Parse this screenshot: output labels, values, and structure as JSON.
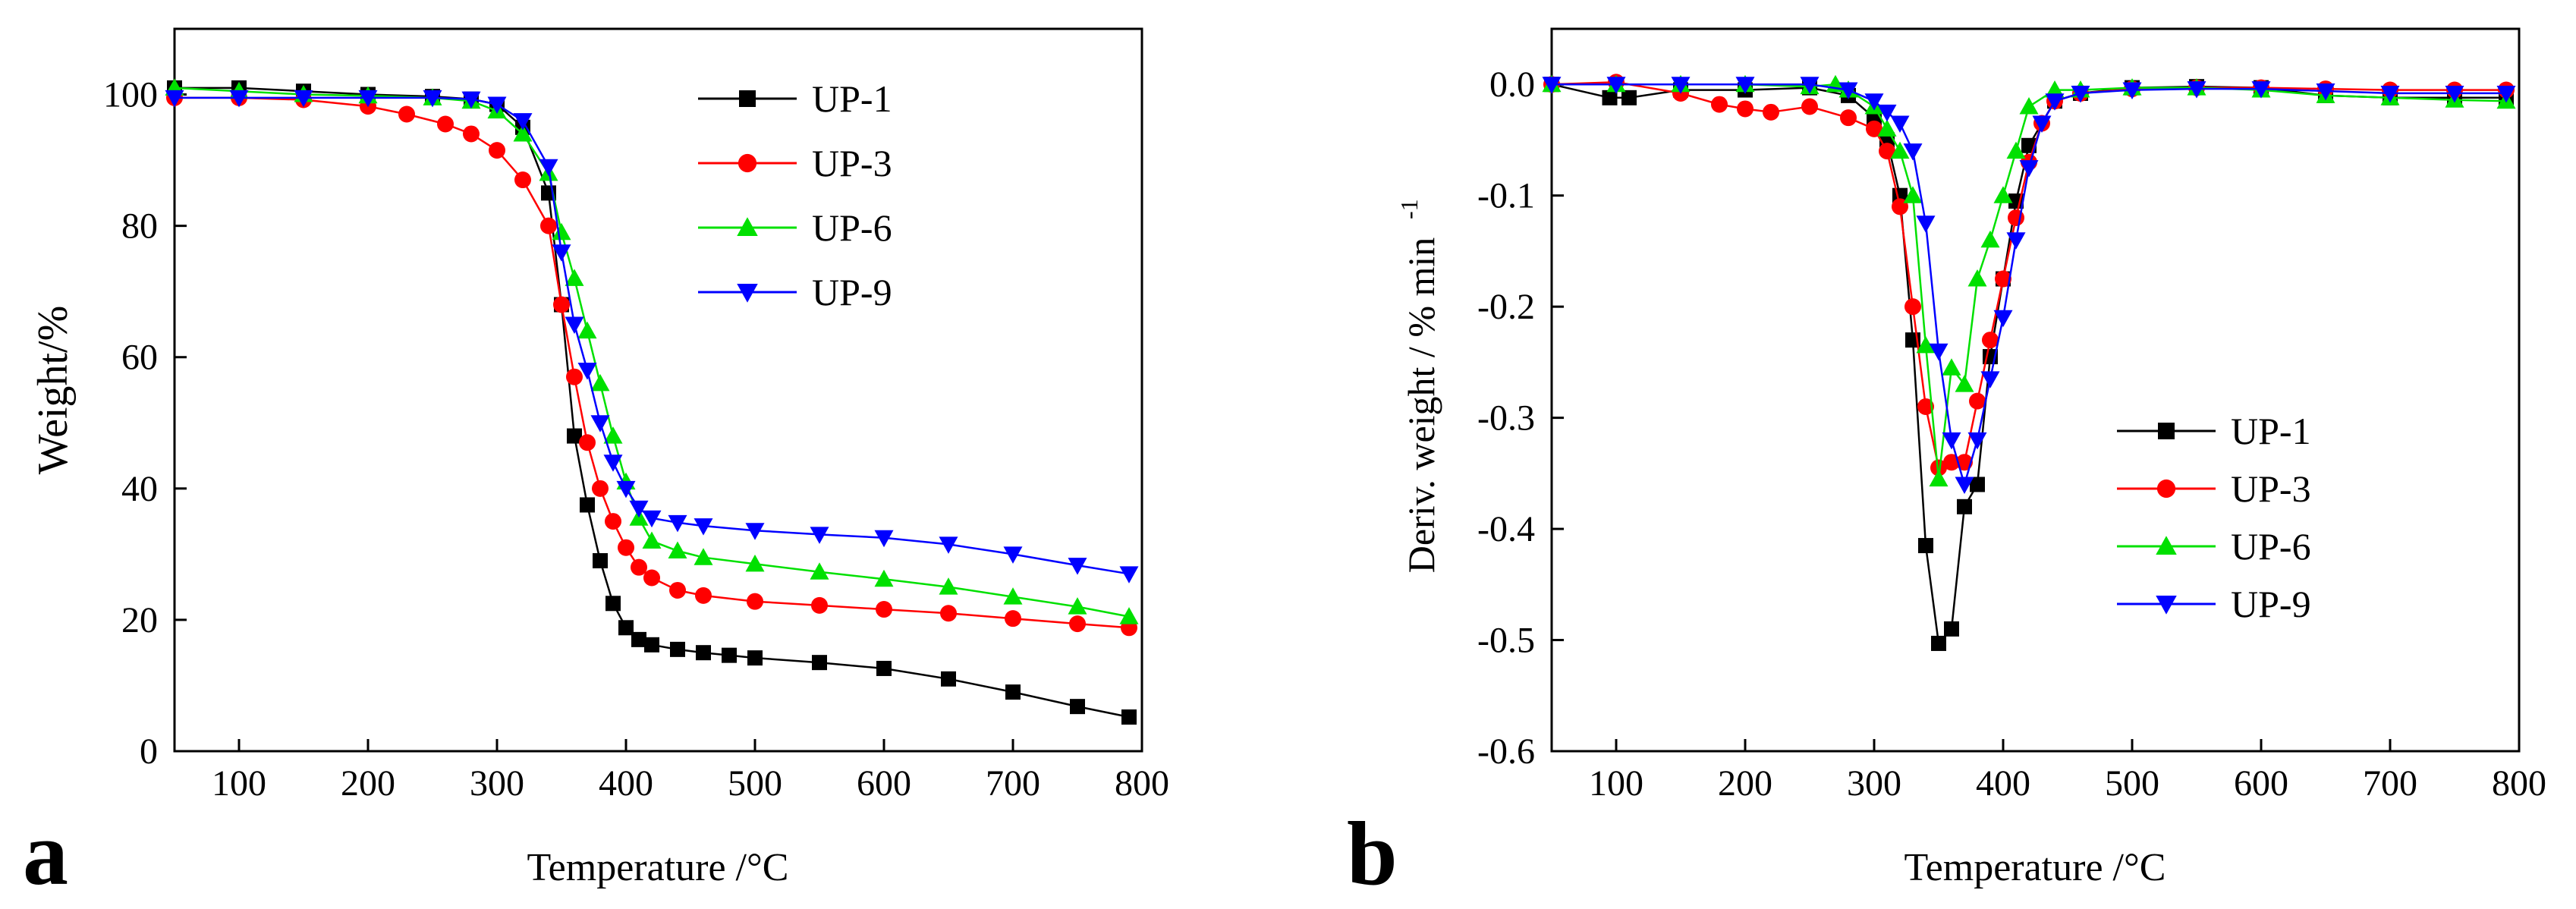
{
  "chart_data": [
    {
      "type": "line",
      "panel": "a",
      "xlabel": "Temperature /°C",
      "ylabel": "Weight/%",
      "xlim": [
        50,
        800
      ],
      "ylim": [
        0,
        110
      ],
      "xticks": [
        100,
        200,
        300,
        400,
        500,
        600,
        700,
        800
      ],
      "yticks": [
        0,
        20,
        40,
        60,
        80,
        100
      ],
      "legend_position": "top-right",
      "series": [
        {
          "name": "UP-1",
          "color": "#000000",
          "marker": "square",
          "x": [
            50,
            100,
            150,
            200,
            250,
            280,
            300,
            320,
            340,
            350,
            360,
            370,
            380,
            390,
            400,
            410,
            420,
            440,
            460,
            480,
            500,
            550,
            600,
            650,
            700,
            750,
            790
          ],
          "y": [
            101,
            101,
            100.5,
            100,
            99.7,
            99.3,
            98.5,
            95,
            85,
            68,
            48,
            37.5,
            29,
            22.5,
            18.8,
            17,
            16.2,
            15.5,
            15.0,
            14.6,
            14.2,
            13.5,
            12.6,
            11.0,
            9.0,
            6.8,
            5.2
          ]
        },
        {
          "name": "UP-3",
          "color": "#ff0000",
          "marker": "circle",
          "x": [
            50,
            100,
            150,
            200,
            230,
            260,
            280,
            300,
            320,
            340,
            350,
            360,
            370,
            380,
            390,
            400,
            410,
            420,
            440,
            460,
            500,
            550,
            600,
            650,
            700,
            750,
            790
          ],
          "y": [
            99.5,
            99.5,
            99.2,
            98.2,
            97,
            95.5,
            94,
            91.5,
            87,
            80,
            68,
            57,
            47,
            40,
            35,
            31,
            28,
            26.4,
            24.5,
            23.7,
            22.8,
            22.2,
            21.6,
            21.0,
            20.2,
            19.4,
            18.8
          ]
        },
        {
          "name": "UP-6",
          "color": "#00e000",
          "marker": "triangle-up",
          "x": [
            50,
            100,
            150,
            200,
            250,
            280,
            300,
            320,
            340,
            350,
            360,
            370,
            380,
            390,
            400,
            410,
            420,
            440,
            460,
            500,
            550,
            600,
            650,
            700,
            750,
            790
          ],
          "y": [
            101,
            100.5,
            100,
            99.8,
            99.5,
            99,
            97.5,
            94,
            88,
            79,
            72,
            64,
            56,
            48,
            41,
            35.5,
            32,
            30.5,
            29.5,
            28.5,
            27.3,
            26.2,
            25,
            23.5,
            22,
            20.5
          ]
        },
        {
          "name": "UP-9",
          "color": "#0000ff",
          "marker": "triangle-down",
          "x": [
            50,
            100,
            150,
            200,
            250,
            280,
            300,
            320,
            340,
            350,
            360,
            370,
            380,
            390,
            400,
            410,
            420,
            440,
            460,
            500,
            550,
            600,
            650,
            700,
            750,
            790
          ],
          "y": [
            99.5,
            99.5,
            99.5,
            99.5,
            99.5,
            99.3,
            98.5,
            96,
            89,
            76,
            65,
            58,
            50,
            44,
            40,
            37,
            35.5,
            34.8,
            34.3,
            33.6,
            33.0,
            32.5,
            31.5,
            30.0,
            28.3,
            27.0
          ]
        }
      ]
    },
    {
      "type": "line",
      "panel": "b",
      "xlabel": "Temperature /°C",
      "ylabel": "Deriv. weight / % min",
      "ylabel_superscript": "-1",
      "xlim": [
        50,
        800
      ],
      "ylim": [
        -0.6,
        0.05
      ],
      "xticks": [
        100,
        200,
        300,
        400,
        500,
        600,
        700,
        800
      ],
      "yticks": [
        0.0,
        -0.1,
        -0.2,
        -0.3,
        -0.4,
        -0.5,
        -0.6
      ],
      "legend_position": "bottom-right",
      "series": [
        {
          "name": "UP-1",
          "color": "#000000",
          "marker": "square",
          "x": [
            50,
            95,
            110,
            150,
            200,
            250,
            280,
            300,
            310,
            320,
            330,
            340,
            350,
            360,
            370,
            380,
            390,
            400,
            410,
            420,
            440,
            460,
            500,
            550,
            600,
            650,
            700,
            750,
            790
          ],
          "y": [
            0.0,
            -0.012,
            -0.012,
            -0.005,
            -0.005,
            -0.003,
            -0.01,
            -0.03,
            -0.05,
            -0.1,
            -0.23,
            -0.415,
            -0.503,
            -0.49,
            -0.38,
            -0.36,
            -0.245,
            -0.175,
            -0.105,
            -0.055,
            -0.015,
            -0.008,
            -0.003,
            -0.002,
            -0.003,
            -0.01,
            -0.012,
            -0.012,
            -0.012
          ]
        },
        {
          "name": "UP-3",
          "color": "#ff0000",
          "marker": "circle",
          "x": [
            50,
            100,
            150,
            180,
            200,
            220,
            250,
            280,
            300,
            310,
            320,
            330,
            340,
            350,
            360,
            370,
            380,
            390,
            400,
            410,
            420,
            430,
            440,
            460,
            500,
            550,
            600,
            650,
            700,
            750,
            790
          ],
          "y": [
            0.0,
            0.002,
            -0.008,
            -0.018,
            -0.022,
            -0.025,
            -0.02,
            -0.03,
            -0.04,
            -0.06,
            -0.11,
            -0.2,
            -0.29,
            -0.345,
            -0.34,
            -0.34,
            -0.285,
            -0.23,
            -0.175,
            -0.12,
            -0.07,
            -0.035,
            -0.015,
            -0.008,
            -0.004,
            -0.003,
            -0.003,
            -0.004,
            -0.005,
            -0.005,
            -0.005
          ]
        },
        {
          "name": "UP-6",
          "color": "#00e000",
          "marker": "triangle-up",
          "x": [
            50,
            100,
            150,
            200,
            250,
            270,
            280,
            300,
            310,
            320,
            330,
            340,
            350,
            360,
            370,
            380,
            390,
            400,
            410,
            420,
            440,
            460,
            500,
            550,
            600,
            650,
            700,
            750,
            790
          ],
          "y": [
            0.0,
            0.0,
            0.0,
            0.0,
            -0.002,
            0.0,
            -0.005,
            -0.02,
            -0.04,
            -0.06,
            -0.1,
            -0.235,
            -0.355,
            -0.255,
            -0.27,
            -0.175,
            -0.14,
            -0.1,
            -0.06,
            -0.02,
            -0.005,
            -0.005,
            -0.003,
            -0.003,
            -0.005,
            -0.01,
            -0.012,
            -0.014,
            -0.015
          ]
        },
        {
          "name": "UP-9",
          "color": "#0000ff",
          "marker": "triangle-down",
          "x": [
            50,
            100,
            150,
            200,
            250,
            280,
            300,
            310,
            320,
            330,
            340,
            350,
            360,
            370,
            380,
            390,
            400,
            410,
            420,
            430,
            440,
            460,
            500,
            550,
            600,
            650,
            700,
            750,
            790
          ],
          "y": [
            0.0,
            0.0,
            0.0,
            0.0,
            0.0,
            -0.005,
            -0.015,
            -0.025,
            -0.035,
            -0.06,
            -0.125,
            -0.24,
            -0.32,
            -0.36,
            -0.32,
            -0.265,
            -0.21,
            -0.14,
            -0.075,
            -0.035,
            -0.015,
            -0.008,
            -0.005,
            -0.004,
            -0.004,
            -0.006,
            -0.008,
            -0.008,
            -0.008
          ]
        }
      ]
    }
  ],
  "panel_labels": [
    "a",
    "b"
  ]
}
